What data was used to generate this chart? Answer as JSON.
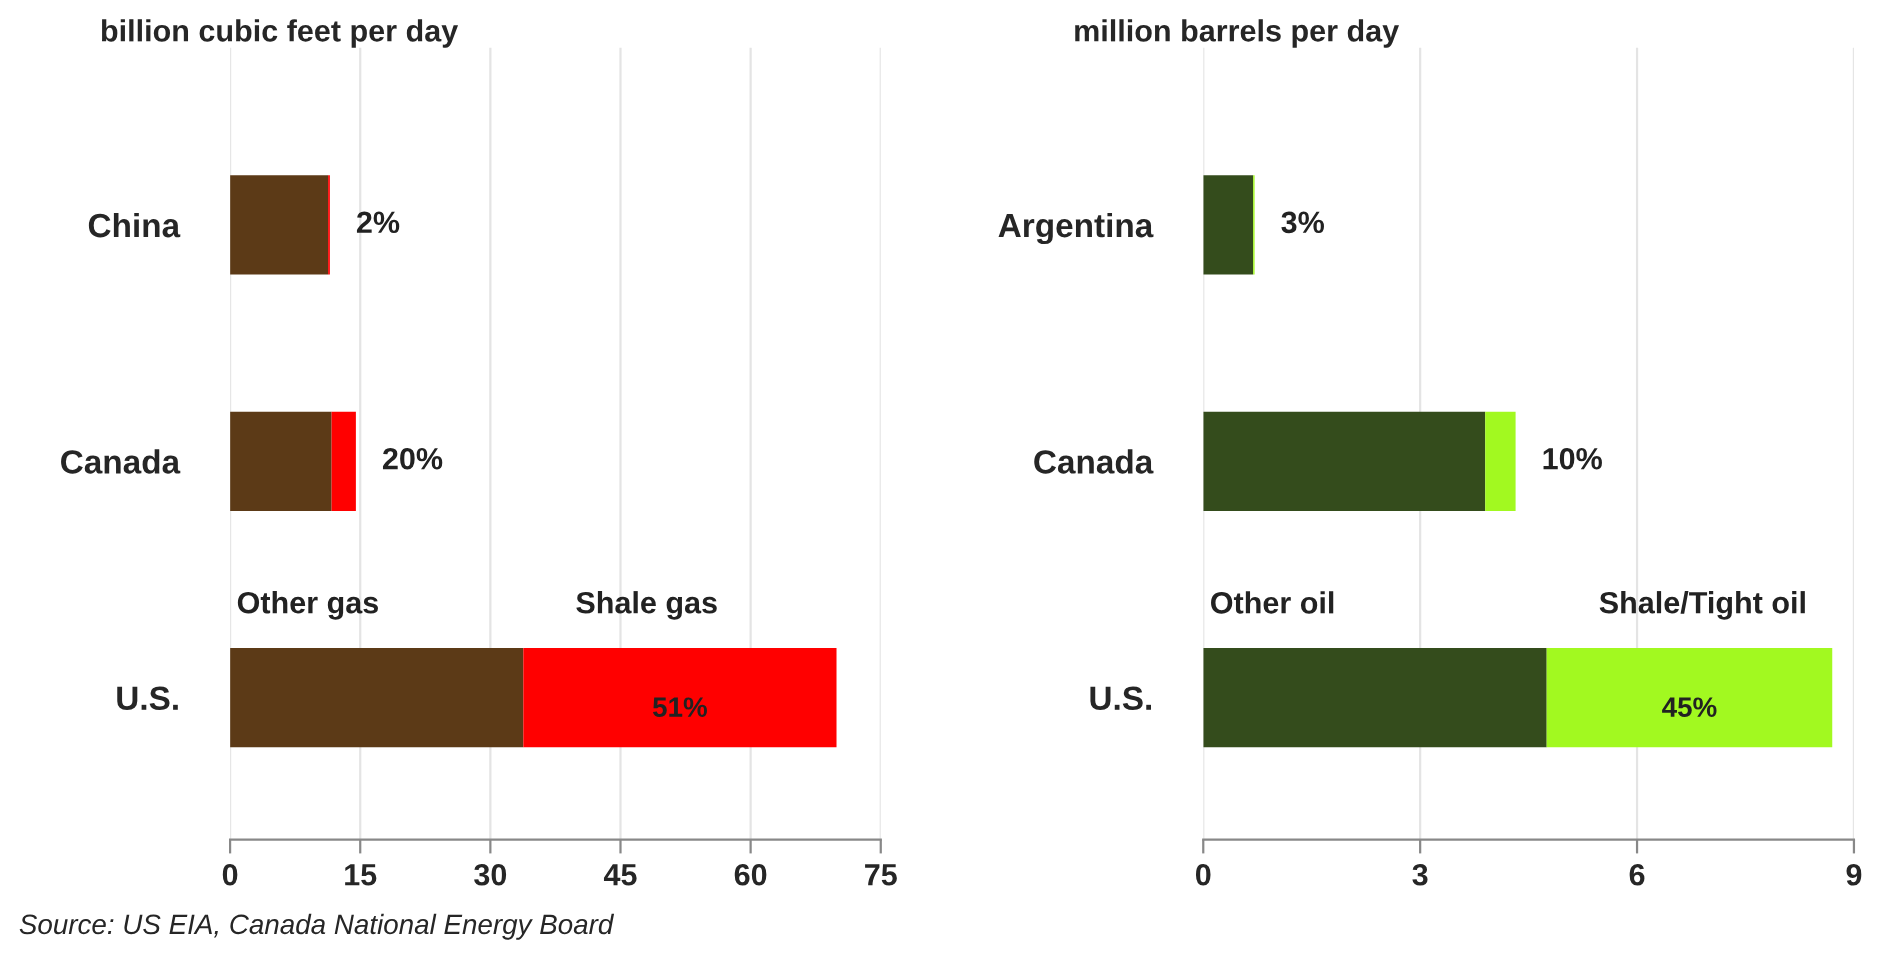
{
  "chart_data": [
    {
      "type": "bar",
      "orientation": "horizontal",
      "stacked": true,
      "title": "billion cubic feet per day",
      "categories": [
        "China",
        "Canada",
        "U.S."
      ],
      "series": [
        {
          "name": "Other gas",
          "color": "#5c3a17",
          "values": [
            11.3,
            11.7,
            33.8
          ]
        },
        {
          "name": "Shale gas",
          "color": "#ff0000",
          "values": [
            0.2,
            2.8,
            36.1
          ]
        }
      ],
      "xlim": [
        0,
        75
      ],
      "xticks": [
        0,
        15,
        30,
        45,
        60,
        75
      ],
      "grid": "x",
      "annotations": [
        {
          "text": "2%",
          "x": 11.5,
          "y": "China"
        },
        {
          "text": "20%",
          "x": 14.5,
          "y": "Canada"
        },
        "51%",
        "Source: US EIA, Canada National Energy Board"
      ]
    },
    {
      "type": "bar",
      "orientation": "horizontal",
      "stacked": true,
      "title": "million barrels per day",
      "categories": [
        "Argentina",
        "Canada",
        "U.S."
      ],
      "series": [
        {
          "name": "Other oil",
          "color": "#344c1c",
          "values": [
            0.69,
            3.9,
            4.75
          ]
        },
        {
          "name": "Shale/Tight oil",
          "color": "#a2f920",
          "values": [
            0.02,
            0.42,
            3.95
          ]
        }
      ],
      "xlim": [
        0,
        9
      ],
      "xticks": [
        0,
        3,
        6,
        9
      ],
      "grid": "x",
      "annotations": [
        {
          "text": "3%",
          "x": 0.71,
          "y": "Argentina"
        },
        {
          "text": "10%",
          "x": 4.32,
          "y": "Canada"
        },
        "45%"
      ]
    }
  ]
}
